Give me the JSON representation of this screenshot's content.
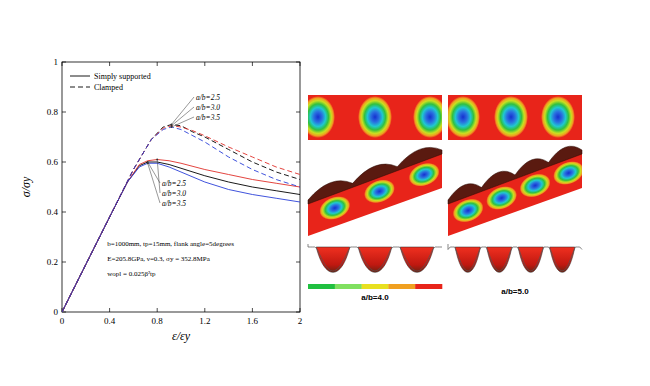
{
  "chart_data": {
    "type": "line",
    "xlabel": "ε/εy",
    "ylabel": "σ/σy",
    "xlim": [
      0,
      2
    ],
    "ylim": [
      0,
      1
    ],
    "xticks": [
      0,
      0.4,
      0.8,
      1.2,
      1.6,
      2
    ],
    "yticks": [
      0,
      0.2,
      0.4,
      0.6,
      0.8,
      1
    ],
    "grid": false,
    "legend": "upper left",
    "legend_entries": [
      {
        "label": "Simply supported",
        "line_style": "solid"
      },
      {
        "label": "Clamped",
        "line_style": "dashed"
      }
    ],
    "annotations": [
      "b=1000mm, tp=15mm, flank angle=5degrees",
      "E=205.8GPa, ν=0.3, σy = 352.8MPa",
      "wopl = 0.025β²tp"
    ],
    "series": [
      {
        "name": "a/b=2.5",
        "color": "#000000",
        "line_style": "solid",
        "x": [
          0,
          0.2,
          0.4,
          0.55,
          0.65,
          0.72,
          0.8,
          0.9,
          1.0,
          1.2,
          1.4,
          1.6,
          1.8,
          2.0
        ],
        "values": [
          0,
          0.19,
          0.38,
          0.52,
          0.585,
          0.6,
          0.6,
          0.59,
          0.575,
          0.545,
          0.52,
          0.5,
          0.485,
          0.47
        ]
      },
      {
        "name": "a/b=3.0",
        "color": "#e0302a",
        "line_style": "solid",
        "x": [
          0,
          0.2,
          0.4,
          0.55,
          0.65,
          0.72,
          0.8,
          0.9,
          1.0,
          1.2,
          1.4,
          1.6,
          1.8,
          2.0
        ],
        "values": [
          0,
          0.19,
          0.38,
          0.52,
          0.59,
          0.605,
          0.61,
          0.605,
          0.595,
          0.57,
          0.55,
          0.53,
          0.515,
          0.5
        ]
      },
      {
        "name": "a/b=3.5",
        "color": "#2a3fd8",
        "line_style": "solid",
        "x": [
          0,
          0.2,
          0.4,
          0.55,
          0.65,
          0.72,
          0.8,
          0.9,
          1.0,
          1.2,
          1.4,
          1.6,
          1.8,
          2.0
        ],
        "values": [
          0,
          0.19,
          0.38,
          0.52,
          0.58,
          0.595,
          0.595,
          0.58,
          0.56,
          0.52,
          0.49,
          0.47,
          0.455,
          0.44
        ]
      },
      {
        "name": "a/b=2.5",
        "color": "#000000",
        "line_style": "dashed",
        "x": [
          0,
          0.2,
          0.4,
          0.6,
          0.75,
          0.85,
          0.92,
          1.0,
          1.1,
          1.2,
          1.4,
          1.6,
          1.8,
          2.0
        ],
        "values": [
          0,
          0.19,
          0.38,
          0.57,
          0.69,
          0.74,
          0.75,
          0.745,
          0.72,
          0.7,
          0.65,
          0.6,
          0.56,
          0.53
        ]
      },
      {
        "name": "a/b=3.0",
        "color": "#e0302a",
        "line_style": "dashed",
        "x": [
          0,
          0.2,
          0.4,
          0.6,
          0.75,
          0.85,
          0.92,
          1.0,
          1.1,
          1.2,
          1.4,
          1.6,
          1.8,
          2.0
        ],
        "values": [
          0,
          0.19,
          0.38,
          0.57,
          0.69,
          0.735,
          0.745,
          0.74,
          0.725,
          0.705,
          0.66,
          0.62,
          0.58,
          0.55
        ]
      },
      {
        "name": "a/b=3.5",
        "color": "#2a3fd8",
        "line_style": "dashed",
        "x": [
          0,
          0.2,
          0.4,
          0.6,
          0.75,
          0.85,
          0.92,
          1.0,
          1.1,
          1.2,
          1.4,
          1.6,
          1.8,
          2.0
        ],
        "values": [
          0,
          0.19,
          0.38,
          0.57,
          0.69,
          0.73,
          0.74,
          0.73,
          0.705,
          0.68,
          0.62,
          0.57,
          0.53,
          0.5
        ]
      }
    ]
  },
  "contour_panels": [
    {
      "label": "a/b=4.0"
    },
    {
      "label": "a/b=5.0"
    }
  ]
}
